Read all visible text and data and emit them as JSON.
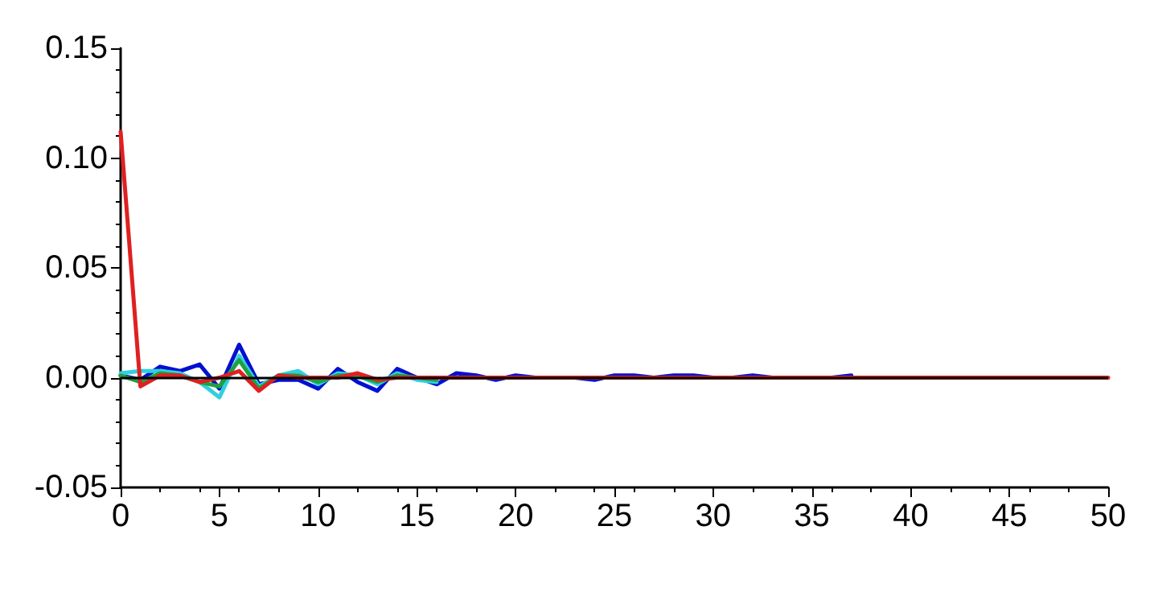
{
  "chart_data": {
    "type": "line",
    "x": [
      0,
      1,
      2,
      3,
      4,
      5,
      6,
      7,
      8,
      9,
      10,
      11,
      12,
      13,
      14,
      15,
      16,
      17,
      18,
      19,
      20,
      21,
      22,
      23,
      24,
      25,
      26,
      27,
      28,
      29,
      30,
      31,
      32,
      33,
      34,
      35,
      36,
      37,
      38,
      39,
      40,
      41,
      42,
      43,
      44,
      45,
      46,
      47,
      48,
      49,
      50
    ],
    "series": [
      {
        "color": "#0010d0",
        "values": [
          0.001,
          -0.001,
          0.005,
          0.003,
          0.006,
          -0.005,
          0.015,
          -0.003,
          -0.001,
          -0.001,
          -0.005,
          0.004,
          -0.002,
          -0.006,
          0.004,
          0,
          -0.003,
          0.002,
          0.001,
          -0.001,
          0.001,
          0,
          0,
          0,
          -0.001,
          0.001,
          0.001,
          0,
          0.001,
          0.001,
          0,
          0,
          0.001,
          0,
          0,
          0,
          0,
          0.001,
          null,
          null,
          null,
          null,
          null,
          null,
          null,
          null,
          null,
          null,
          null,
          null,
          null
        ]
      },
      {
        "color": "#30d0e0",
        "values": [
          0.002,
          0.003,
          0.003,
          0.002,
          -0.002,
          -0.009,
          0.01,
          -0.004,
          0.001,
          0.003,
          -0.003,
          0.002,
          0.001,
          -0.003,
          0.002,
          -0.001,
          -0.002,
          null,
          null,
          null,
          null,
          null,
          null,
          null,
          null,
          null,
          null,
          null,
          null,
          null,
          null,
          null,
          null,
          null,
          null,
          null,
          null,
          null,
          null,
          null,
          null,
          null,
          null,
          null,
          null,
          null,
          null,
          null,
          null,
          null,
          null
        ]
      },
      {
        "color": "#20a040",
        "values": [
          0.001,
          -0.002,
          0.002,
          0.001,
          -0.002,
          -0.004,
          0.008,
          -0.005,
          0.001,
          0.001,
          -0.002,
          0.001,
          0.001,
          -0.002,
          0.001,
          0,
          -0.001,
          null,
          null,
          null,
          null,
          null,
          null,
          null,
          null,
          null,
          null,
          null,
          null,
          null,
          null,
          null,
          null,
          null,
          null,
          null,
          null,
          null,
          null,
          null,
          null,
          null,
          null,
          null,
          null,
          null,
          null,
          null,
          null,
          null,
          null
        ]
      },
      {
        "color": "#e02020",
        "values": [
          0.112,
          -0.004,
          0.001,
          0.001,
          -0.002,
          0,
          0.003,
          -0.006,
          0.001,
          0,
          0,
          0,
          0.002,
          -0.001,
          0,
          0,
          0,
          0,
          0,
          0,
          0,
          0,
          0,
          0,
          0,
          0,
          0,
          0,
          0,
          0,
          0,
          0,
          0,
          0,
          0,
          0,
          0,
          0,
          0,
          0,
          0,
          0,
          0,
          0,
          0,
          0,
          0,
          0,
          0,
          0,
          0
        ]
      }
    ],
    "xlim": [
      0,
      50
    ],
    "xticks": [
      0,
      5,
      10,
      15,
      20,
      25,
      30,
      35,
      40,
      45,
      50
    ],
    "ylim": [
      -0.05,
      0.15
    ],
    "yticks": [
      {
        "value": -0.05,
        "label": "-0.05"
      },
      {
        "value": 0,
        "label": "0.00"
      },
      {
        "value": 0.05,
        "label": "0.05"
      },
      {
        "value": 0.1,
        "label": "0.10"
      },
      {
        "value": 0.15,
        "label": "0.15"
      }
    ],
    "ref_lines": [
      {
        "axis": "y",
        "value": 0,
        "color": "#000000"
      }
    ],
    "grid": false,
    "marker": "none",
    "line_style": "solid"
  }
}
